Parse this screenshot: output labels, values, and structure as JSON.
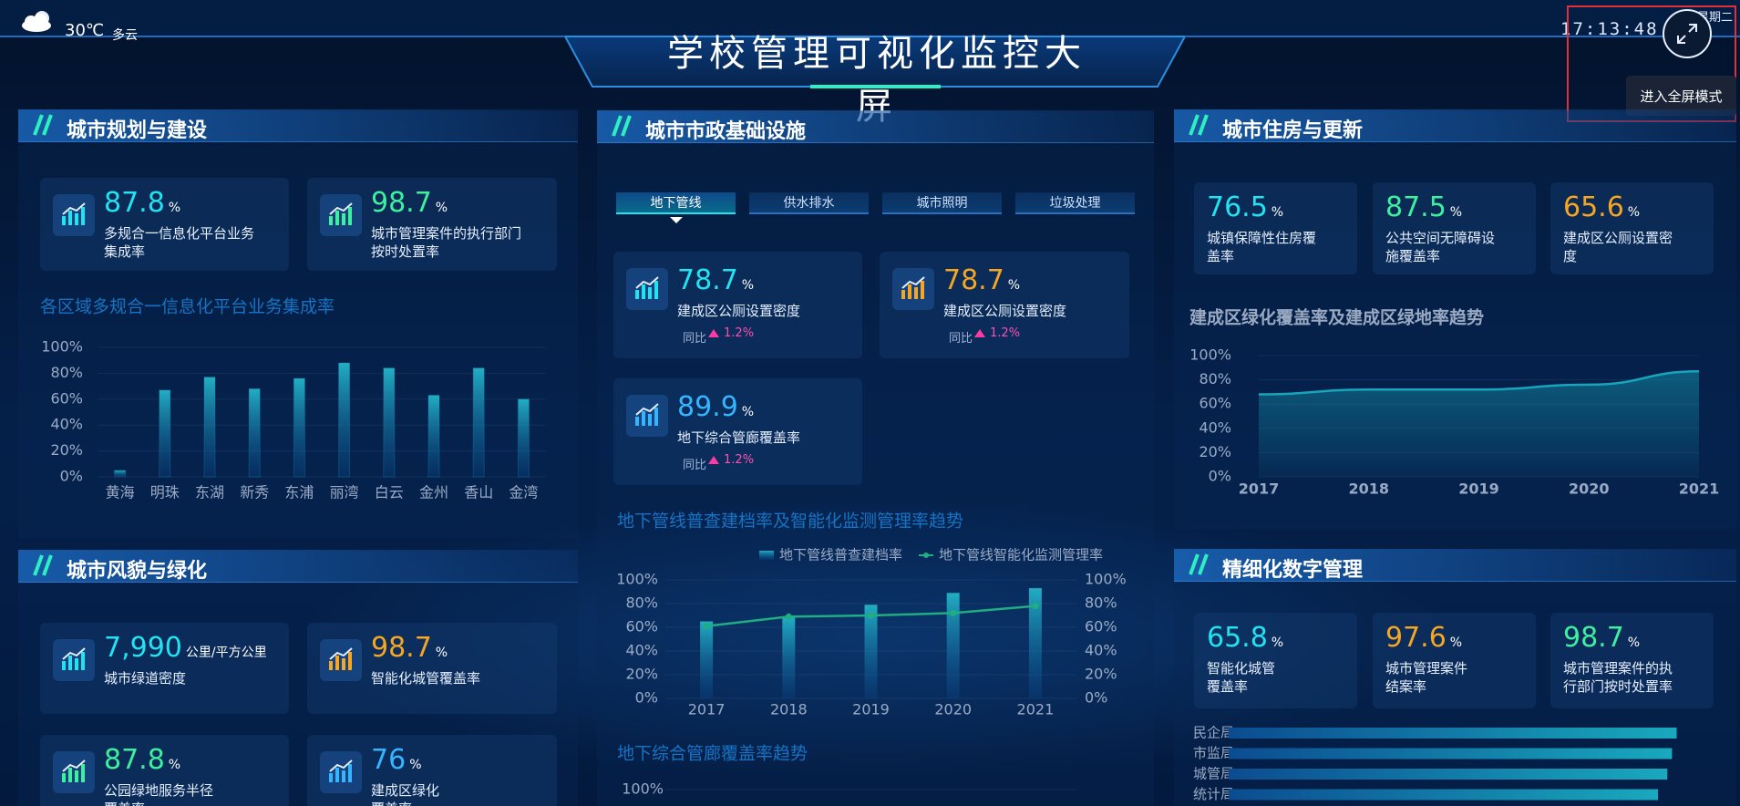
{
  "header": {
    "temperature": "30℃",
    "weather": "多云",
    "title": "学校管理可视化监控大屏",
    "time": "17:13:48",
    "weekday": "星期二",
    "fullscreen_tooltip": "进入全屏模式"
  },
  "panels": [
    {
      "title": "城市规划与建设",
      "cards": [
        {
          "value": "87.8",
          "unit": "%",
          "label": "多规合一信息化平台业务集成率",
          "color": "#22e3f2"
        },
        {
          "value": "98.7",
          "unit": "%",
          "label": "城市管理案件的执行部门按时处置率",
          "color": "#3df0a0"
        }
      ]
    },
    {
      "title": "城市风貌与绿化",
      "cards": [
        {
          "value": "7,990",
          "unit": "公里/平方公里",
          "label": "城市绿道密度",
          "color": "#22e3f2"
        },
        {
          "value": "98.7",
          "unit": "%",
          "label": "智能化城管覆盖率",
          "color": "#f5a623"
        },
        {
          "value": "87.8",
          "unit": "%",
          "label": "公园绿地服务半径覆盖率",
          "color": "#3df0a0"
        },
        {
          "value": "76",
          "unit": "%",
          "label": "建成区绿化覆盖率",
          "color": "#35b5ff"
        }
      ]
    },
    {
      "title": "城市市政基础设施",
      "tabs": [
        "地下管线",
        "供水排水",
        "城市照明",
        "垃圾处理"
      ],
      "active_tab": 0,
      "cards": [
        {
          "value": "78.7",
          "unit": "%",
          "label": "建成区公厕设置密度",
          "color": "#22e3f2",
          "change_label": "同比",
          "change": "1.2%"
        },
        {
          "value": "78.7",
          "unit": "%",
          "label": "建成区公厕设置密度",
          "color": "#f5a623",
          "change_label": "同比",
          "change": "1.2%"
        },
        {
          "value": "89.9",
          "unit": "%",
          "label": "地下综合管廊覆盖率",
          "color": "#35b5ff",
          "change_label": "同比",
          "change": "1.2%"
        }
      ]
    },
    {
      "title": "城市住房与更新",
      "cards": [
        {
          "value": "76.5",
          "unit": "%",
          "label": "城镇保障性住房覆盖率",
          "color": "#22e3f2"
        },
        {
          "value": "87.5",
          "unit": "%",
          "label": "公共空间无障碍设施覆盖率",
          "color": "#3df0a0"
        },
        {
          "value": "65.6",
          "unit": "%",
          "label": "建成区公厕设置密度",
          "color": "#f5a623"
        }
      ]
    },
    {
      "title": "精细化数字管理",
      "cards": [
        {
          "value": "65.8",
          "unit": "%",
          "label": "智能化城管覆盖率",
          "color": "#22e3f2"
        },
        {
          "value": "97.6",
          "unit": "%",
          "label": "城市管理案件结案率",
          "color": "#f5a623"
        },
        {
          "value": "98.7",
          "unit": "%",
          "label": "城市管理案件的执行部门按时处置率",
          "color": "#3df0a0"
        }
      ]
    }
  ],
  "chart_data": [
    {
      "type": "bar",
      "title": "各区域多规合一信息化平台业务集成率",
      "categories": [
        "黄海",
        "明珠",
        "东湖",
        "新秀",
        "东浦",
        "丽湾",
        "白云",
        "金州",
        "香山",
        "金湾"
      ],
      "values": [
        5,
        67,
        77,
        68,
        76,
        88,
        84,
        63,
        84,
        60
      ],
      "color": "#1fe8f2",
      "ylim": [
        0,
        100
      ],
      "yticks": [
        {
          "value": 0,
          "label": "0%"
        },
        {
          "value": 20,
          "label": "20%"
        },
        {
          "value": 40,
          "label": "40%"
        },
        {
          "value": 60,
          "label": "60%"
        },
        {
          "value": 80,
          "label": "80%"
        },
        {
          "value": 100,
          "label": "100%"
        }
      ],
      "grid": true
    },
    {
      "type": "combo",
      "title": "地下管线普查建档率及智能化监测管理率趋势",
      "categories": [
        "2017",
        "2018",
        "2019",
        "2020",
        "2021"
      ],
      "series": [
        {
          "name": "地下管线普查建档率",
          "color": "#1fe8f2",
          "values": [
            65,
            69,
            79,
            89,
            93
          ]
        },
        {
          "name": "地下管线智能化监测管理率",
          "color": "#2df59a",
          "values": [
            61,
            69,
            70,
            72,
            78
          ],
          "axis": "y2"
        }
      ],
      "ylim": [
        0,
        100
      ],
      "yticks": [
        {
          "value": 0,
          "label": "0%"
        },
        {
          "value": 20,
          "label": "20%"
        },
        {
          "value": 40,
          "label": "40%"
        },
        {
          "value": 60,
          "label": "60%"
        },
        {
          "value": 80,
          "label": "80%"
        },
        {
          "value": 100,
          "label": "100%"
        }
      ],
      "y2lim": [
        0,
        100
      ],
      "y2ticks": [
        {
          "value": 0,
          "label": "0%"
        },
        {
          "value": 20,
          "label": "20%"
        },
        {
          "value": 40,
          "label": "40%"
        },
        {
          "value": 60,
          "label": "60%"
        },
        {
          "value": 80,
          "label": "80%"
        },
        {
          "value": 100,
          "label": "100%"
        }
      ],
      "grid": true
    },
    {
      "type": "line",
      "title": "地下综合管廊覆盖率趋势",
      "ylim": [
        0,
        100
      ],
      "yticks": [
        {
          "value": 100,
          "label": "100%"
        }
      ],
      "grid": true
    },
    {
      "type": "area",
      "title": "建成区绿化覆盖率及建成区绿地率趋势",
      "x": [
        2017,
        2018,
        2019,
        2020,
        2021
      ],
      "values": [
        68,
        72,
        72,
        76,
        87
      ],
      "color": "#1fe8f2",
      "xlim": [
        2017,
        2021
      ],
      "xticks": [
        2017,
        2018,
        2019,
        2020,
        2021
      ],
      "ylim": [
        0,
        100
      ],
      "yticks": [
        {
          "value": 0,
          "label": "0%"
        },
        {
          "value": 20,
          "label": "20%"
        },
        {
          "value": 40,
          "label": "40%"
        },
        {
          "value": 60,
          "label": "60%"
        },
        {
          "value": 80,
          "label": "80%"
        },
        {
          "value": 100,
          "label": "100%"
        }
      ],
      "grid": true
    },
    {
      "type": "hbar",
      "categories": [
        "民企局",
        "市监局",
        "城管局",
        "统计局"
      ],
      "values": [
        96,
        95,
        94,
        92
      ],
      "color": "#1fe8f2",
      "xlim": [
        0,
        100
      ]
    }
  ]
}
